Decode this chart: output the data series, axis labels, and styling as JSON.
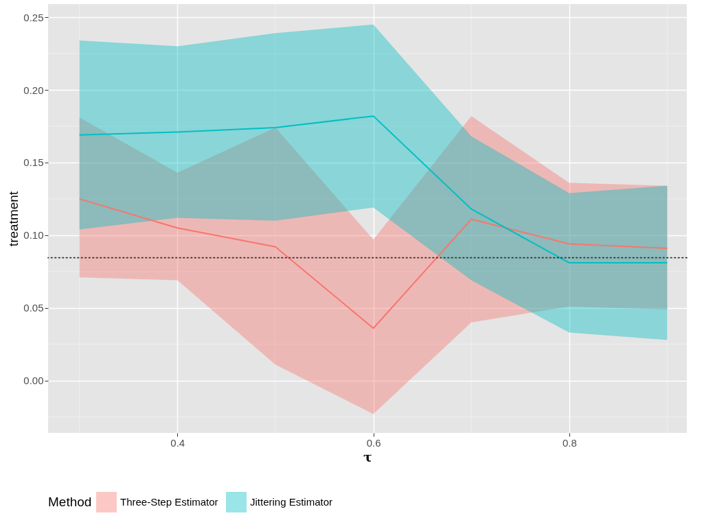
{
  "chart_data": {
    "type": "line",
    "xlabel": "τ",
    "ylabel": "treatment",
    "legend_title": "Method",
    "x": [
      0.3,
      0.4,
      0.5,
      0.6,
      0.7,
      0.8,
      0.9
    ],
    "series": [
      {
        "name": "Three-Step Estimator",
        "color": "#f8766d",
        "values": [
          0.125,
          0.105,
          0.092,
          0.036,
          0.111,
          0.094,
          0.091
        ],
        "lower": [
          0.071,
          0.069,
          0.011,
          -0.023,
          0.04,
          0.051,
          0.049
        ],
        "upper": [
          0.181,
          0.143,
          0.174,
          0.097,
          0.182,
          0.136,
          0.134
        ]
      },
      {
        "name": "Jittering Estimator",
        "color": "#00bfc4",
        "values": [
          0.169,
          0.171,
          0.174,
          0.182,
          0.118,
          0.081,
          0.081
        ],
        "lower": [
          0.104,
          0.112,
          0.11,
          0.119,
          0.069,
          0.033,
          0.028
        ],
        "upper": [
          0.234,
          0.23,
          0.239,
          0.245,
          0.168,
          0.129,
          0.134
        ]
      }
    ],
    "xlim": [
      0.268,
      0.92
    ],
    "xticks": [
      0.4,
      0.6,
      0.8
    ],
    "ylim": [
      -0.036,
      0.259
    ],
    "yticks": [
      {
        "value": 0,
        "label": "0.00"
      },
      {
        "value": 0.05,
        "label": "0.05"
      },
      {
        "value": 0.1,
        "label": "0.10"
      },
      {
        "value": 0.15,
        "label": "0.15"
      },
      {
        "value": 0.2,
        "label": "0.20"
      },
      {
        "value": 0.25,
        "label": "0.25"
      }
    ],
    "ref_lines": [
      {
        "axis": "y",
        "value": 0.0845,
        "line_style": "dotted",
        "color": "#333333"
      }
    ],
    "grid": true,
    "legend": "bottom"
  }
}
